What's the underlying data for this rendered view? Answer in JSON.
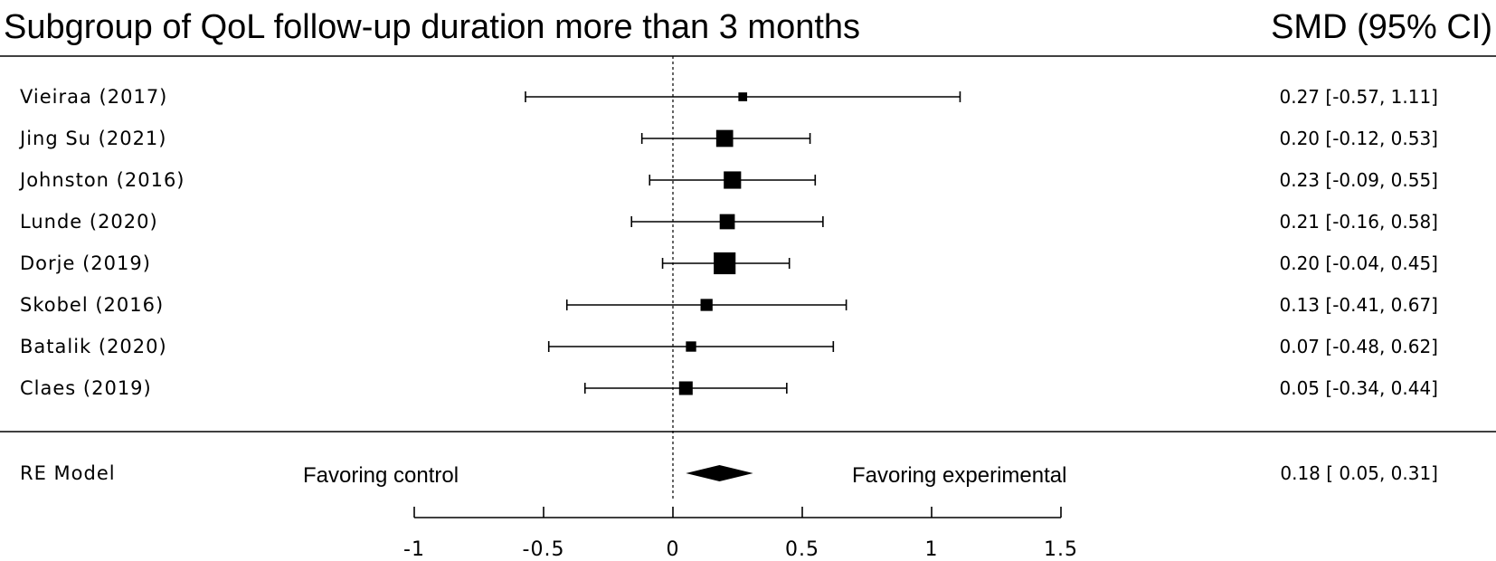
{
  "chart_data": {
    "type": "forest",
    "title": "Subgroup of QoL follow-up duration more than 3 months",
    "effect_header": "SMD (95% CI)",
    "studies": [
      {
        "label": "Vieiraa (2017)",
        "est": 0.27,
        "lo": -0.57,
        "hi": 1.11,
        "weight": 1.2,
        "ci_text": "0.27 [-0.57, 1.11]"
      },
      {
        "label": "Jing Su (2021)",
        "est": 0.2,
        "lo": -0.12,
        "hi": 0.53,
        "weight": 8.0,
        "ci_text": "0.20 [-0.12, 0.53]"
      },
      {
        "label": "Johnston (2016)",
        "est": 0.23,
        "lo": -0.09,
        "hi": 0.55,
        "weight": 8.5,
        "ci_text": "0.23 [-0.09, 0.55]"
      },
      {
        "label": "Lunde (2020)",
        "est": 0.21,
        "lo": -0.16,
        "hi": 0.58,
        "weight": 6.0,
        "ci_text": "0.21 [-0.16, 0.58]"
      },
      {
        "label": "Dorje (2019)",
        "est": 0.2,
        "lo": -0.04,
        "hi": 0.45,
        "weight": 15.0,
        "ci_text": "0.20 [-0.04, 0.45]"
      },
      {
        "label": "Skobel (2016)",
        "est": 0.13,
        "lo": -0.41,
        "hi": 0.67,
        "weight": 3.2,
        "ci_text": "0.13 [-0.41, 0.67]"
      },
      {
        "label": "Batalik (2020)",
        "est": 0.07,
        "lo": -0.48,
        "hi": 0.62,
        "weight": 2.0,
        "ci_text": "0.07 [-0.48, 0.62]"
      },
      {
        "label": "Claes (2019)",
        "est": 0.05,
        "lo": -0.34,
        "hi": 0.44,
        "weight": 4.5,
        "ci_text": "0.05 [-0.34, 0.44]"
      }
    ],
    "summary": {
      "label": "RE Model",
      "est": 0.18,
      "lo": 0.05,
      "hi": 0.31,
      "ci_text": "0.18 [ 0.05, 0.31]"
    },
    "favor_left": "Favoring control",
    "favor_right": "Favoring experimental",
    "xlim": [
      -1,
      1.5
    ],
    "xticks": [
      -1,
      -0.5,
      0,
      0.5,
      1,
      1.5
    ],
    "xtick_labels": [
      "-1",
      "-0.5",
      "0",
      "0.5",
      "1",
      "1.5"
    ],
    "reference_line": 0
  }
}
